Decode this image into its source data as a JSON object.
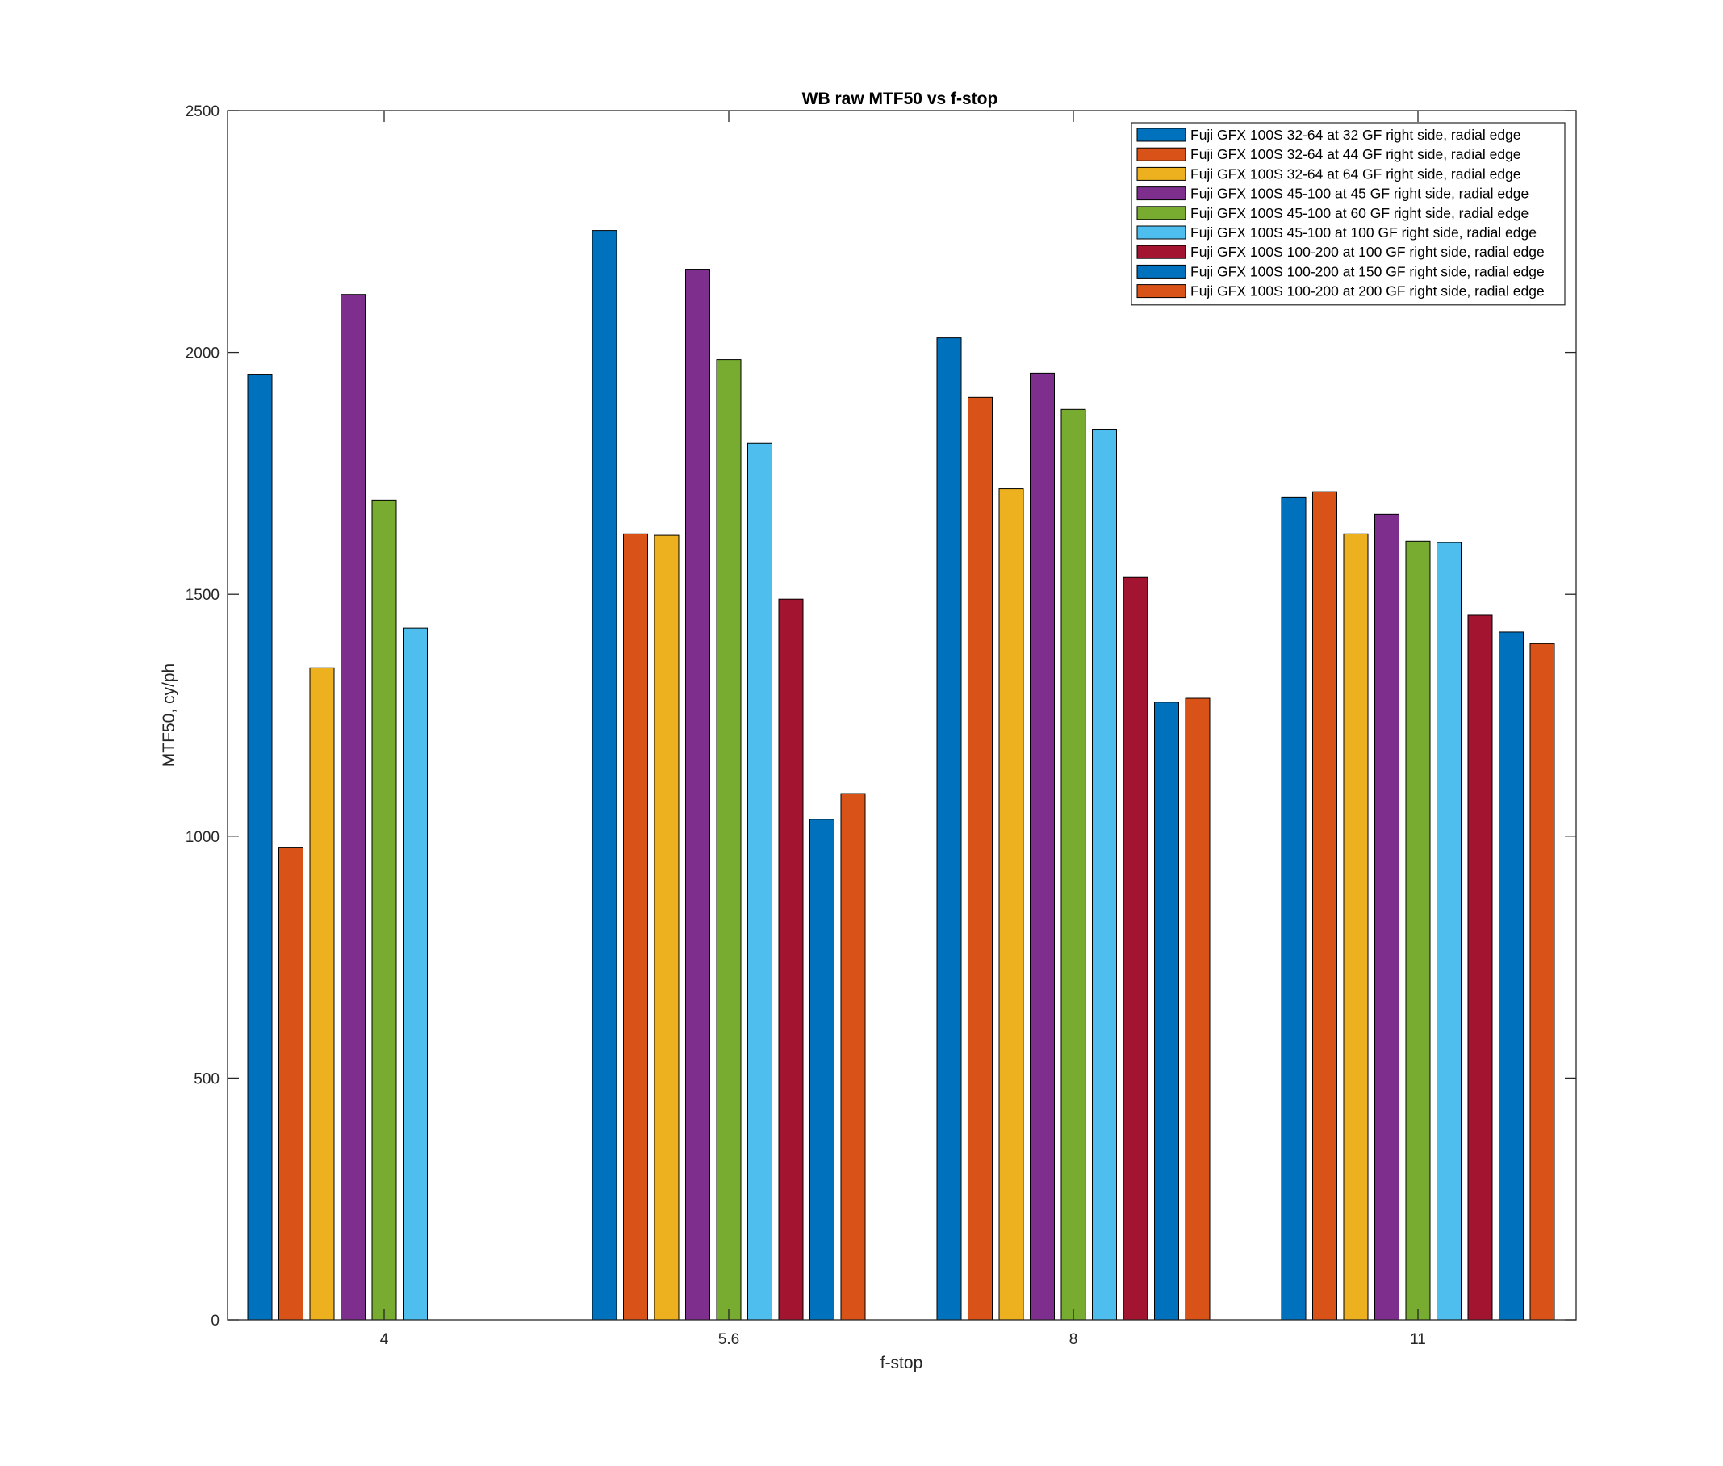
{
  "chart_data": {
    "type": "bar",
    "title": "WB raw MTF50 vs f-stop",
    "xlabel": "f-stop",
    "ylabel": "MTF50, cy/ph",
    "categories": [
      "4",
      "5.6",
      "8",
      "11"
    ],
    "ylim": [
      0,
      2500
    ],
    "yticks": [
      "0",
      "500",
      "1000",
      "1500",
      "2000",
      "2500"
    ],
    "grid": false,
    "legend_position": "top-right",
    "series": [
      {
        "name": "Fuji GFX 100S 32-64 at 32 GF right side, radial edge",
        "color": "#0072BD",
        "values": [
          1955,
          2252,
          2030,
          1700
        ]
      },
      {
        "name": "Fuji GFX 100S 32-64 at 44 GF right side, radial edge",
        "color": "#D95319",
        "values": [
          977,
          1625,
          1907,
          1712
        ]
      },
      {
        "name": "Fuji GFX 100S 32-64 at 64 GF right side, radial edge",
        "color": "#EDB120",
        "values": [
          1348,
          1622,
          1718,
          1625
        ]
      },
      {
        "name": "Fuji GFX 100S 45-100 at 45 GF right side, radial edge",
        "color": "#7E2F8E",
        "values": [
          2120,
          2172,
          1957,
          1665
        ]
      },
      {
        "name": "Fuji GFX 100S 45-100 at 60 GF right side, radial edge",
        "color": "#77AC30",
        "values": [
          1695,
          1985,
          1882,
          1610
        ]
      },
      {
        "name": "Fuji GFX 100S 45-100 at 100 GF right side, radial edge",
        "color": "#4DBEEE",
        "values": [
          1430,
          1812,
          1840,
          1607
        ]
      },
      {
        "name": "Fuji GFX 100S 100-200 at 100 GF right side, radial edge",
        "color": "#A2142F",
        "values": [
          null,
          1490,
          1535,
          1457
        ]
      },
      {
        "name": "Fuji GFX 100S 100-200 at 150 GF right side, radial edge",
        "color": "#0072BD",
        "values": [
          null,
          1035,
          1277,
          1422
        ]
      },
      {
        "name": "Fuji GFX 100S 100-200 at 200 GF right side, radial edge",
        "color": "#D95319",
        "values": [
          null,
          1088,
          1285,
          1398
        ]
      }
    ]
  }
}
